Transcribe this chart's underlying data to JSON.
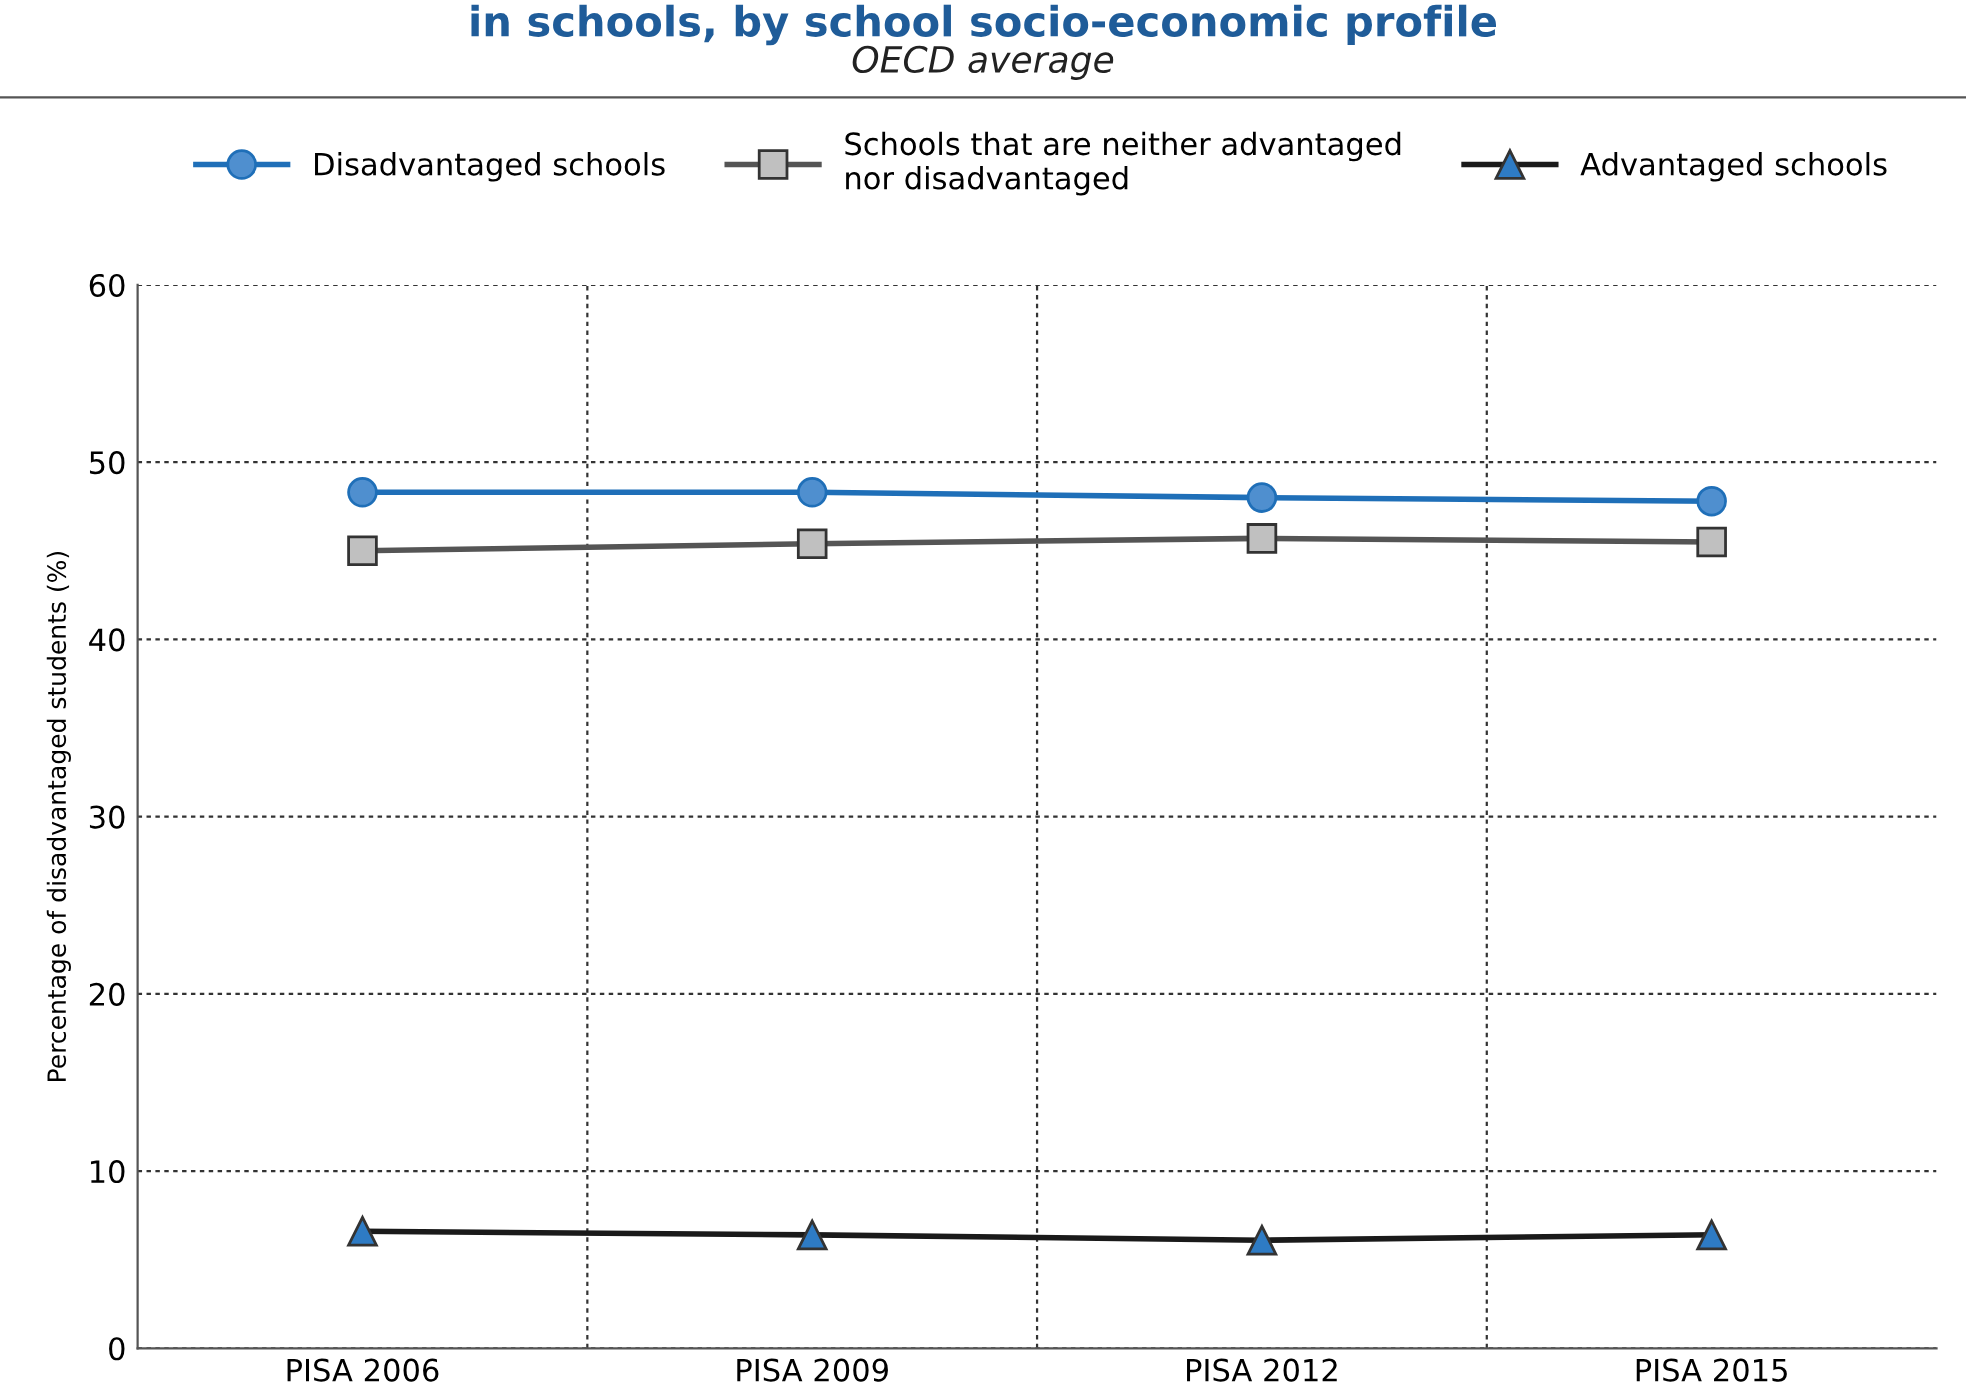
{
  "chart_data": {
    "type": "line",
    "title": "in schools, by school socio-economic profile",
    "subtitle": "OECD average",
    "ylabel": "Percentage of disadvantaged students (%)",
    "categories": [
      "PISA 2006",
      "PISA 2009",
      "PISA 2012",
      "PISA 2015"
    ],
    "series": [
      {
        "name": "Disadvantaged schools",
        "color": "#1f6fb8",
        "marker": "circle",
        "values": [
          48.3,
          48.3,
          48.0,
          47.8
        ]
      },
      {
        "name": "Schools that are neither advantaged\nnor disadvantaged",
        "color": "#555555",
        "marker": "square",
        "values": [
          45.0,
          45.4,
          45.7,
          45.5
        ]
      },
      {
        "name": "Advantaged schools",
        "color": "#1a1a1a",
        "marker": "triangle",
        "values": [
          6.6,
          6.4,
          6.1,
          6.4
        ]
      }
    ],
    "ylim": [
      0,
      60
    ],
    "yticks": [
      0,
      10,
      20,
      30,
      40,
      50,
      60
    ],
    "grid": true,
    "legend": "top"
  }
}
